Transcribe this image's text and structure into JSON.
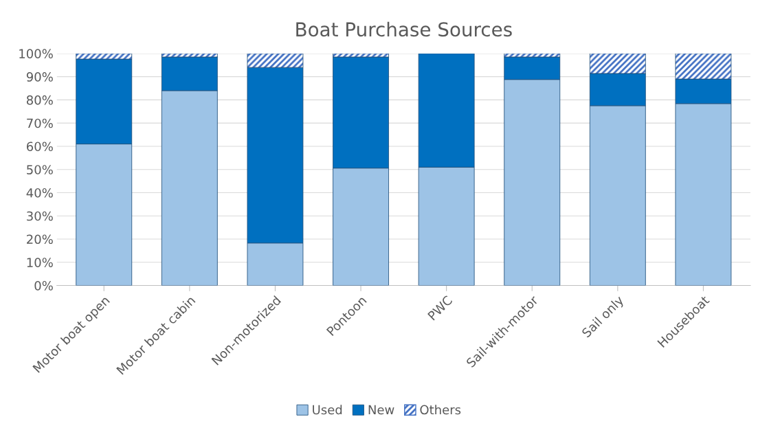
{
  "chart_data": {
    "type": "bar",
    "title": "Boat Purchase Sources",
    "stacked": true,
    "categories": [
      "Motor boat open",
      "Motor boat cabin",
      "Non-motorized",
      "Pontoon",
      "PWC",
      "Sail-with-motor",
      "Sail only",
      "Houseboat"
    ],
    "series": [
      {
        "name": "Used",
        "color": "#9dc3e6",
        "values": [
          61,
          84,
          18.3,
          50.6,
          51,
          88.8,
          77.5,
          78.4
        ]
      },
      {
        "name": "New",
        "color": "#0070c0",
        "values": [
          36.6,
          14.5,
          75.7,
          47.9,
          49,
          9.7,
          13.9,
          10.6
        ]
      },
      {
        "name": "Others",
        "color": "#4472c4",
        "values": [
          2.4,
          1.5,
          6,
          1.5,
          0,
          1.5,
          8.6,
          11
        ]
      }
    ],
    "ylim": [
      0,
      100
    ],
    "yticks": [
      {
        "value": 0,
        "label": "0%"
      },
      {
        "value": 10,
        "label": "10%"
      },
      {
        "value": 20,
        "label": "20%"
      },
      {
        "value": 30,
        "label": "30%"
      },
      {
        "value": 40,
        "label": "40%"
      },
      {
        "value": 50,
        "label": "50%"
      },
      {
        "value": 60,
        "label": "60%"
      },
      {
        "value": 70,
        "label": "70%"
      },
      {
        "value": 80,
        "label": "80%"
      },
      {
        "value": 90,
        "label": "90%"
      },
      {
        "value": 100,
        "label": "100%"
      }
    ],
    "grid": "y",
    "legend": "bottom"
  }
}
